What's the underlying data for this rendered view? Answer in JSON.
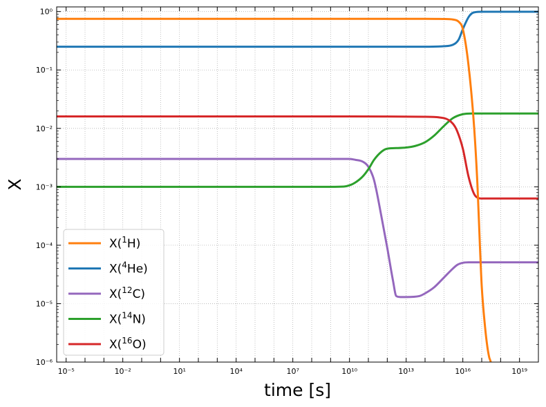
{
  "chart_data": {
    "type": "line",
    "title": "",
    "xlabel": "time [s]",
    "ylabel": "X",
    "xscale": "log",
    "yscale": "log",
    "xlim": [
      3.16e-06,
      1e+20
    ],
    "ylim": [
      1e-06,
      1.2
    ],
    "grid": true,
    "legend_position": "lower-left",
    "x_ticks": [
      {
        "exp": -5,
        "label": "10⁻⁵"
      },
      {
        "exp": -2,
        "label": "10⁻²"
      },
      {
        "exp": 1,
        "label": "10¹"
      },
      {
        "exp": 4,
        "label": "10⁴"
      },
      {
        "exp": 7,
        "label": "10⁷"
      },
      {
        "exp": 10,
        "label": "10¹⁰"
      },
      {
        "exp": 13,
        "label": "10¹³"
      },
      {
        "exp": 16,
        "label": "10¹⁶"
      },
      {
        "exp": 19,
        "label": "10¹⁹"
      }
    ],
    "y_ticks": [
      {
        "exp": 0,
        "label": "10⁰"
      },
      {
        "exp": -1,
        "label": "10⁻¹"
      },
      {
        "exp": -2,
        "label": "10⁻²"
      },
      {
        "exp": -3,
        "label": "10⁻³"
      },
      {
        "exp": -4,
        "label": "10⁻⁴"
      },
      {
        "exp": -5,
        "label": "10⁻⁵"
      },
      {
        "exp": -6,
        "label": "10⁻⁶"
      }
    ],
    "series": [
      {
        "name": "X(1H)",
        "label_base": "X(",
        "label_sup": "1",
        "label_rest": "H)",
        "color": "#ff7f0e",
        "x": [
          3.16e-06,
          1e-05,
          100000.0,
          10000000000.0,
          100000000000000.0,
          1000000000000000.0,
          3000000000000000.0,
          6000000000000000.0,
          1e+16,
          2e+16,
          4e+16,
          6e+16,
          8e+16,
          1e+17,
          1.5e+17,
          2e+17,
          2.5e+17,
          3e+17,
          4e+17
        ],
        "y": [
          0.75,
          0.75,
          0.75,
          0.75,
          0.75,
          0.745,
          0.73,
          0.67,
          0.5,
          0.12,
          0.01,
          0.001,
          0.0001,
          2e-05,
          4e-06,
          1.8e-06,
          1.2e-06,
          1e-06,
          5e-07
        ]
      },
      {
        "name": "X(4He)",
        "label_base": "X(",
        "label_sup": "4",
        "label_rest": "He)",
        "color": "#1f77b4",
        "x": [
          3.16e-06,
          1e-05,
          100000.0,
          10000000000.0,
          100000000000000.0,
          1000000000000000.0,
          3000000000000000.0,
          6000000000000000.0,
          1e+16,
          2e+16,
          3e+16,
          5e+16,
          1e+17,
          1e+18,
          1e+20
        ],
        "y": [
          0.25,
          0.25,
          0.25,
          0.25,
          0.25,
          0.255,
          0.27,
          0.33,
          0.5,
          0.8,
          0.93,
          0.98,
          0.99,
          0.99,
          0.99
        ]
      },
      {
        "name": "X(12C)",
        "label_base": "X(",
        "label_sup": "12",
        "label_rest": "C)",
        "color": "#9467bd",
        "x": [
          3.16e-06,
          1e-05,
          100000.0,
          10000000000.0,
          20000000000.0,
          50000000000.0,
          100000000000.0,
          200000000000.0,
          500000000000.0,
          1000000000000.0,
          2000000000000.0,
          3000000000000.0,
          5000000000000.0,
          10000000000000.0,
          50000000000000.0,
          100000000000000.0,
          300000000000000.0,
          1000000000000000.0,
          3000000000000000.0,
          5000000000000000.0,
          1e+16,
          2e+16,
          5e+16,
          1e+17,
          1e+18,
          1e+20
        ],
        "y": [
          0.003,
          0.003,
          0.003,
          0.003,
          0.0029,
          0.0027,
          0.0022,
          0.0013,
          0.0003,
          9e-05,
          2.5e-05,
          1.35e-05,
          1.3e-05,
          1.3e-05,
          1.35e-05,
          1.5e-05,
          1.9e-05,
          2.8e-05,
          4e-05,
          4.6e-05,
          5e-05,
          5.1e-05,
          5.1e-05,
          5.1e-05,
          5.1e-05,
          5.1e-05
        ]
      },
      {
        "name": "X(14N)",
        "label_base": "X(",
        "label_sup": "14",
        "label_rest": "N)",
        "color": "#2ca02c",
        "x": [
          3.16e-06,
          1e-05,
          100000.0,
          1000000000.0,
          5000000000.0,
          10000000000.0,
          20000000000.0,
          50000000000.0,
          100000000000.0,
          200000000000.0,
          500000000000.0,
          1000000000000.0,
          3000000000000.0,
          10000000000000.0,
          30000000000000.0,
          100000000000000.0,
          300000000000000.0,
          1000000000000000.0,
          3000000000000000.0,
          1e+16,
          3e+16,
          1e+17,
          1e+18,
          1e+20
        ],
        "y": [
          0.001,
          0.001,
          0.001,
          0.001,
          0.00101,
          0.00106,
          0.00118,
          0.0015,
          0.002,
          0.0029,
          0.004,
          0.0045,
          0.0046,
          0.0047,
          0.005,
          0.0058,
          0.0075,
          0.011,
          0.015,
          0.0175,
          0.018,
          0.018,
          0.018,
          0.018
        ]
      },
      {
        "name": "X(16O)",
        "label_base": "X(",
        "label_sup": "16",
        "label_rest": "O)",
        "color": "#d62728",
        "x": [
          3.16e-06,
          1e-05,
          100000.0,
          10000000000.0,
          100000000000000.0,
          1000000000000000.0,
          3000000000000000.0,
          5000000000000000.0,
          1e+16,
          2e+16,
          4e+16,
          7e+16,
          1e+17,
          2e+17,
          1e+18,
          1e+20
        ],
        "y": [
          0.016,
          0.016,
          0.016,
          0.016,
          0.0158,
          0.015,
          0.012,
          0.009,
          0.0045,
          0.0015,
          0.00075,
          0.00064,
          0.00063,
          0.00063,
          0.00063,
          0.00063
        ]
      }
    ]
  }
}
